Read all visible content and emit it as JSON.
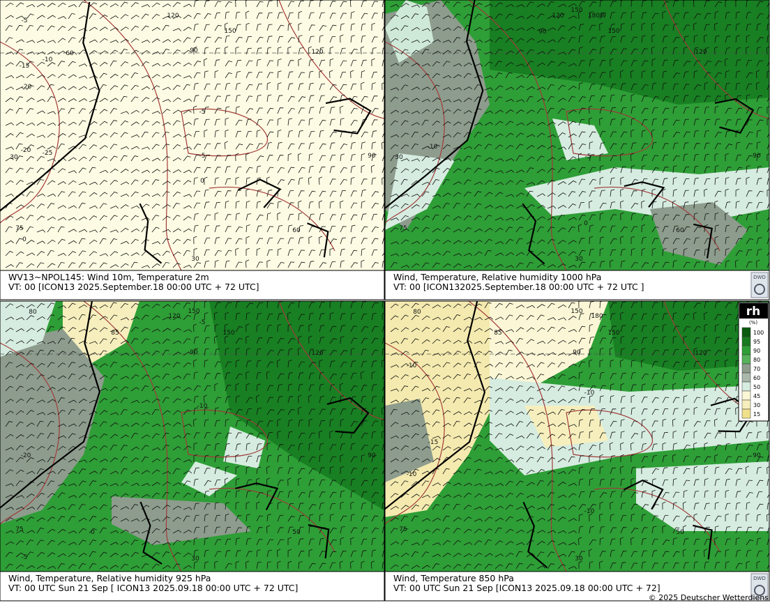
{
  "panels": [
    {
      "caption": [
        "WV13~NPOL145:  Wind 10m, Temperature  2m",
        "VT: 00 [ICON13 2025.September.18 00:00 UTC + 72 UTC]"
      ],
      "labels": [
        "-5",
        "-10",
        "-15",
        "-20",
        "-20",
        "-25",
        "-5",
        "-5",
        "0",
        "120",
        "150",
        "90",
        "60",
        "120",
        "90",
        "30",
        "75",
        "0",
        "60",
        "30"
      ]
    },
    {
      "caption": [
        "Wind,  Temperature, Relative humidity 1000 hPa",
        "VT: 00 [ICON132025.September.18 00:00 UTC +  72 UTC ]"
      ],
      "labels": [
        "-10",
        "-5",
        "0",
        "120",
        "150",
        "180W",
        "150",
        "90",
        "120",
        "90",
        "30",
        "75",
        "60",
        "30"
      ]
    },
    {
      "caption": [
        "Wind, Temperature, Relative humidity 925 hPa",
        "VT: 00 UTC Sun  21 Sep [ ICON13 2025.09.18 00:00 UTC + 72 UTC]"
      ],
      "labels": [
        "80",
        "150",
        "120",
        "-5",
        "150",
        "90",
        "120",
        "-10",
        "-20",
        "0",
        "75",
        "-5",
        "50",
        "30",
        "90",
        "85"
      ]
    },
    {
      "caption": [
        "Wind,  Temperature 850 hPa",
        "VT: 00 UTC Sun  21 Sep [ICON13 2025.09.18 00:00 UTC + 72]"
      ],
      "labels": [
        "80",
        "150",
        "180",
        "85",
        "150",
        "90",
        "120",
        "-10",
        "-10",
        "-15",
        "-10",
        "-10",
        "75",
        "90",
        "30",
        "50"
      ]
    }
  ],
  "legend": {
    "title": "rh",
    "unit": "(%)",
    "ticks": [
      "100",
      "95",
      "90",
      "80",
      "70",
      "60",
      "50",
      "45",
      "30",
      "15"
    ]
  },
  "logo": "DWD",
  "copyright": "© 2025 Deutscher Wetterdiens"
}
